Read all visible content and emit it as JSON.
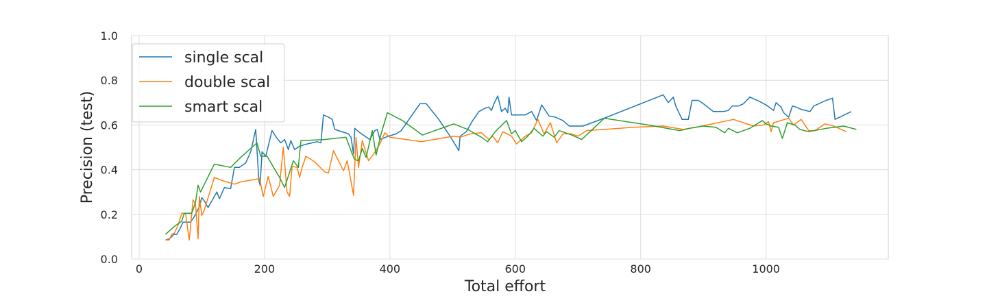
{
  "chart_data": {
    "type": "line",
    "xlabel": "Total effort",
    "ylabel": "Precision (test)",
    "xlim": [
      -12,
      1195
    ],
    "ylim": [
      0.0,
      1.0
    ],
    "xticks": [
      0,
      200,
      400,
      600,
      800,
      1000
    ],
    "yticks": [
      0.0,
      0.2,
      0.4,
      0.6,
      0.8,
      1.0
    ],
    "ytick_labels": [
      "0.0",
      "0.2",
      "0.4",
      "0.6",
      "0.8",
      "1.0"
    ],
    "grid": true,
    "legend_position": "top-left",
    "series": [
      {
        "name": "single scal",
        "color": "#1f77b4",
        "points": [
          [
            42,
            0.085
          ],
          [
            48,
            0.09
          ],
          [
            52,
            0.1
          ],
          [
            55,
            0.11
          ],
          [
            60,
            0.11
          ],
          [
            66,
            0.14
          ],
          [
            70,
            0.165
          ],
          [
            76,
            0.165
          ],
          [
            82,
            0.165
          ],
          [
            88,
            0.19
          ],
          [
            92,
            0.21
          ],
          [
            96,
            0.235
          ],
          [
            100,
            0.275
          ],
          [
            104,
            0.26
          ],
          [
            110,
            0.23
          ],
          [
            118,
            0.27
          ],
          [
            124,
            0.3
          ],
          [
            128,
            0.27
          ],
          [
            136,
            0.32
          ],
          [
            146,
            0.315
          ],
          [
            152,
            0.41
          ],
          [
            160,
            0.41
          ],
          [
            170,
            0.43
          ],
          [
            178,
            0.48
          ],
          [
            186,
            0.58
          ],
          [
            191,
            0.35
          ],
          [
            193,
            0.33
          ],
          [
            196,
            0.48
          ],
          [
            202,
            0.46
          ],
          [
            212,
            0.575
          ],
          [
            220,
            0.54
          ],
          [
            226,
            0.52
          ],
          [
            232,
            0.535
          ],
          [
            238,
            0.49
          ],
          [
            242,
            0.53
          ],
          [
            248,
            0.49
          ],
          [
            256,
            0.505
          ],
          [
            262,
            0.51
          ],
          [
            268,
            0.515
          ],
          [
            276,
            0.52
          ],
          [
            284,
            0.525
          ],
          [
            290,
            0.52
          ],
          [
            294,
            0.645
          ],
          [
            302,
            0.635
          ],
          [
            308,
            0.625
          ],
          [
            312,
            0.58
          ],
          [
            334,
            0.56
          ],
          [
            338,
            0.545
          ],
          [
            342,
            0.47
          ],
          [
            344,
            0.585
          ],
          [
            350,
            0.57
          ],
          [
            360,
            0.55
          ],
          [
            368,
            0.535
          ],
          [
            376,
            0.575
          ],
          [
            380,
            0.58
          ],
          [
            384,
            0.535
          ],
          [
            398,
            0.55
          ],
          [
            410,
            0.56
          ],
          [
            418,
            0.575
          ],
          [
            448,
            0.695
          ],
          [
            458,
            0.695
          ],
          [
            478,
            0.625
          ],
          [
            496,
            0.55
          ],
          [
            510,
            0.485
          ],
          [
            512,
            0.55
          ],
          [
            522,
            0.57
          ],
          [
            532,
            0.62
          ],
          [
            542,
            0.66
          ],
          [
            552,
            0.675
          ],
          [
            558,
            0.68
          ],
          [
            562,
            0.665
          ],
          [
            566,
            0.695
          ],
          [
            572,
            0.73
          ],
          [
            578,
            0.66
          ],
          [
            584,
            0.675
          ],
          [
            588,
            0.655
          ],
          [
            590,
            0.725
          ],
          [
            594,
            0.645
          ],
          [
            604,
            0.645
          ],
          [
            616,
            0.645
          ],
          [
            626,
            0.66
          ],
          [
            634,
            0.62
          ],
          [
            642,
            0.69
          ],
          [
            654,
            0.64
          ],
          [
            664,
            0.635
          ],
          [
            676,
            0.62
          ],
          [
            686,
            0.595
          ],
          [
            708,
            0.595
          ],
          [
            746,
            0.635
          ],
          [
            836,
            0.735
          ],
          [
            844,
            0.7
          ],
          [
            852,
            0.725
          ],
          [
            856,
            0.685
          ],
          [
            866,
            0.625
          ],
          [
            876,
            0.625
          ],
          [
            882,
            0.71
          ],
          [
            892,
            0.71
          ],
          [
            900,
            0.695
          ],
          [
            916,
            0.66
          ],
          [
            932,
            0.66
          ],
          [
            940,
            0.665
          ],
          [
            946,
            0.685
          ],
          [
            956,
            0.685
          ],
          [
            964,
            0.695
          ],
          [
            974,
            0.725
          ],
          [
            990,
            0.705
          ],
          [
            1000,
            0.69
          ],
          [
            1012,
            0.665
          ],
          [
            1016,
            0.7
          ],
          [
            1024,
            0.68
          ],
          [
            1028,
            0.655
          ],
          [
            1036,
            0.635
          ],
          [
            1042,
            0.685
          ],
          [
            1048,
            0.68
          ],
          [
            1056,
            0.67
          ],
          [
            1070,
            0.66
          ],
          [
            1076,
            0.685
          ],
          [
            1096,
            0.71
          ],
          [
            1106,
            0.72
          ],
          [
            1110,
            0.625
          ],
          [
            1136,
            0.66
          ]
        ]
      },
      {
        "name": "double scal",
        "color": "#ff7f0e",
        "points": [
          [
            42,
            0.085
          ],
          [
            48,
            0.085
          ],
          [
            52,
            0.11
          ],
          [
            56,
            0.115
          ],
          [
            62,
            0.15
          ],
          [
            68,
            0.205
          ],
          [
            74,
            0.205
          ],
          [
            80,
            0.085
          ],
          [
            86,
            0.265
          ],
          [
            90,
            0.245
          ],
          [
            94,
            0.09
          ],
          [
            96,
            0.28
          ],
          [
            100,
            0.195
          ],
          [
            104,
            0.22
          ],
          [
            120,
            0.365
          ],
          [
            134,
            0.35
          ],
          [
            152,
            0.335
          ],
          [
            162,
            0.345
          ],
          [
            192,
            0.36
          ],
          [
            198,
            0.28
          ],
          [
            206,
            0.37
          ],
          [
            214,
            0.28
          ],
          [
            224,
            0.33
          ],
          [
            230,
            0.5
          ],
          [
            236,
            0.3
          ],
          [
            240,
            0.28
          ],
          [
            244,
            0.415
          ],
          [
            252,
            0.41
          ],
          [
            256,
            0.365
          ],
          [
            260,
            0.41
          ],
          [
            266,
            0.46
          ],
          [
            280,
            0.435
          ],
          [
            296,
            0.39
          ],
          [
            302,
            0.385
          ],
          [
            310,
            0.485
          ],
          [
            326,
            0.395
          ],
          [
            332,
            0.44
          ],
          [
            342,
            0.285
          ],
          [
            346,
            0.545
          ],
          [
            350,
            0.41
          ],
          [
            356,
            0.53
          ],
          [
            366,
            0.44
          ],
          [
            374,
            0.47
          ],
          [
            384,
            0.515
          ],
          [
            392,
            0.565
          ],
          [
            400,
            0.545
          ],
          [
            450,
            0.525
          ],
          [
            502,
            0.55
          ],
          [
            512,
            0.545
          ],
          [
            528,
            0.56
          ],
          [
            546,
            0.565
          ],
          [
            558,
            0.535
          ],
          [
            564,
            0.55
          ],
          [
            572,
            0.52
          ],
          [
            580,
            0.57
          ],
          [
            594,
            0.55
          ],
          [
            602,
            0.515
          ],
          [
            616,
            0.55
          ],
          [
            626,
            0.565
          ],
          [
            636,
            0.625
          ],
          [
            646,
            0.56
          ],
          [
            656,
            0.61
          ],
          [
            666,
            0.52
          ],
          [
            676,
            0.56
          ],
          [
            690,
            0.56
          ],
          [
            700,
            0.55
          ],
          [
            714,
            0.575
          ],
          [
            742,
            0.58
          ],
          [
            788,
            0.59
          ],
          [
            836,
            0.595
          ],
          [
            868,
            0.58
          ],
          [
            898,
            0.595
          ],
          [
            948,
            0.625
          ],
          [
            980,
            0.595
          ],
          [
            996,
            0.6
          ],
          [
            1004,
            0.615
          ],
          [
            1008,
            0.57
          ],
          [
            1012,
            0.61
          ],
          [
            1036,
            0.63
          ],
          [
            1044,
            0.6
          ],
          [
            1056,
            0.625
          ],
          [
            1068,
            0.575
          ],
          [
            1078,
            0.575
          ],
          [
            1094,
            0.605
          ],
          [
            1108,
            0.595
          ],
          [
            1128,
            0.57
          ]
        ]
      },
      {
        "name": "smart scal",
        "color": "#2ca02c",
        "points": [
          [
            42,
            0.11
          ],
          [
            56,
            0.145
          ],
          [
            68,
            0.17
          ],
          [
            72,
            0.205
          ],
          [
            84,
            0.205
          ],
          [
            90,
            0.255
          ],
          [
            94,
            0.33
          ],
          [
            98,
            0.3
          ],
          [
            120,
            0.425
          ],
          [
            146,
            0.41
          ],
          [
            162,
            0.455
          ],
          [
            188,
            0.52
          ],
          [
            194,
            0.46
          ],
          [
            204,
            0.46
          ],
          [
            224,
            0.365
          ],
          [
            232,
            0.32
          ],
          [
            246,
            0.44
          ],
          [
            254,
            0.41
          ],
          [
            258,
            0.53
          ],
          [
            296,
            0.535
          ],
          [
            330,
            0.545
          ],
          [
            340,
            0.47
          ],
          [
            344,
            0.445
          ],
          [
            350,
            0.44
          ],
          [
            356,
            0.495
          ],
          [
            362,
            0.455
          ],
          [
            372,
            0.575
          ],
          [
            378,
            0.465
          ],
          [
            386,
            0.56
          ],
          [
            396,
            0.655
          ],
          [
            420,
            0.62
          ],
          [
            452,
            0.555
          ],
          [
            502,
            0.605
          ],
          [
            524,
            0.58
          ],
          [
            546,
            0.545
          ],
          [
            556,
            0.525
          ],
          [
            568,
            0.57
          ],
          [
            586,
            0.62
          ],
          [
            594,
            0.56
          ],
          [
            600,
            0.575
          ],
          [
            610,
            0.525
          ],
          [
            620,
            0.55
          ],
          [
            630,
            0.585
          ],
          [
            644,
            0.55
          ],
          [
            650,
            0.57
          ],
          [
            662,
            0.545
          ],
          [
            670,
            0.575
          ],
          [
            690,
            0.555
          ],
          [
            706,
            0.535
          ],
          [
            742,
            0.63
          ],
          [
            812,
            0.6
          ],
          [
            862,
            0.575
          ],
          [
            878,
            0.585
          ],
          [
            900,
            0.595
          ],
          [
            920,
            0.59
          ],
          [
            934,
            0.565
          ],
          [
            940,
            0.585
          ],
          [
            954,
            0.565
          ],
          [
            974,
            0.585
          ],
          [
            994,
            0.62
          ],
          [
            1000,
            0.605
          ],
          [
            1008,
            0.595
          ],
          [
            1020,
            0.59
          ],
          [
            1026,
            0.54
          ],
          [
            1034,
            0.61
          ],
          [
            1046,
            0.6
          ],
          [
            1054,
            0.58
          ],
          [
            1068,
            0.57
          ],
          [
            1096,
            0.585
          ],
          [
            1124,
            0.595
          ],
          [
            1144,
            0.58
          ]
        ]
      }
    ]
  }
}
